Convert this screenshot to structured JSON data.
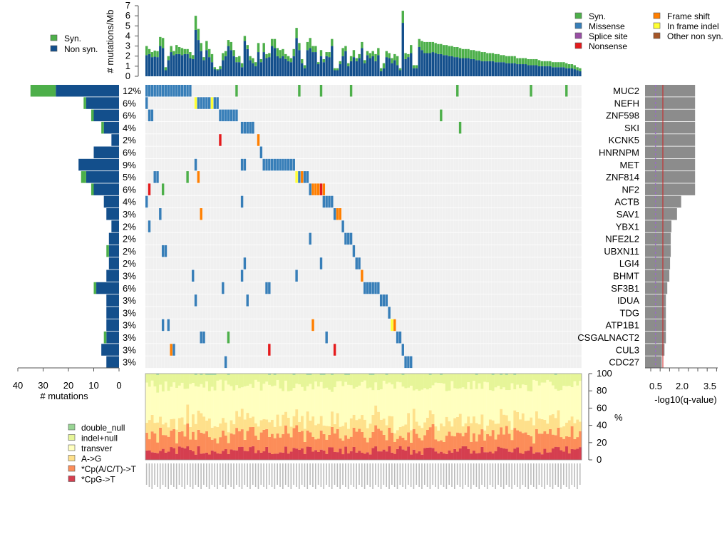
{
  "chart_data": {
    "type": "oncoplot",
    "title": "",
    "n_samples": 160,
    "colors": {
      "syn": "#4DAF4A",
      "nonsyn": "#134F8C",
      "missense": "#377EB8",
      "splice_site": "#984EA3",
      "nonsense": "#E41A1C",
      "frame_shift": "#FF7F00",
      "in_frame_indel": "#FFFF33",
      "other_non_syn": "#A65628",
      "background": "#F0F0F0",
      "qbar": "#8C8C8C",
      "spectrum": [
        "#D53E4F",
        "#FC8D59",
        "#FEE08B",
        "#FFFFBF",
        "#E6F598",
        "#99D594"
      ]
    },
    "top_legend": {
      "items": [
        {
          "label": "Syn.",
          "color": "#4DAF4A"
        },
        {
          "label": "Non syn.",
          "color": "#134F8C"
        }
      ]
    },
    "type_legend": {
      "items": [
        {
          "label": "Syn.",
          "color": "#4DAF4A"
        },
        {
          "label": "Missense",
          "color": "#377EB8"
        },
        {
          "label": "Splice site",
          "color": "#984EA3"
        },
        {
          "label": "Nonsense",
          "color": "#E41A1C"
        },
        {
          "label": "Frame shift",
          "color": "#FF7F00"
        },
        {
          "label": "In frame indel",
          "color": "#FFFF33"
        },
        {
          "label": "Other non syn.",
          "color": "#A65628"
        }
      ]
    },
    "burden": {
      "ylabel": "# mutations/Mb",
      "ylim": [
        0,
        7
      ],
      "ticks": [
        "0",
        "1",
        "2",
        "3",
        "4",
        "5",
        "6",
        "7"
      ],
      "nonsyn": [
        2.1,
        2.2,
        1.9,
        1.95,
        1.9,
        3.0,
        2.8,
        0.6,
        1.6,
        2.4,
        2.1,
        2.2,
        2.2,
        2.1,
        2.2,
        2.2,
        1.8,
        1.7,
        4.6,
        3.6,
        2.5,
        1.6,
        2.6,
        1.9,
        1.4,
        0.7,
        0.6,
        0.7,
        1.6,
        2.0,
        3.0,
        2.6,
        2.0,
        1.4,
        1.4,
        0.9,
        3.5,
        2.7,
        1.6,
        1.3,
        1.0,
        2.4,
        1.4,
        2.4,
        1.8,
        1.9,
        3.0,
        2.8,
        2.0,
        1.8,
        2.0,
        1.7,
        1.5,
        1.4,
        2.0,
        3.8,
        2.6,
        1.3,
        0.8,
        2.6,
        2.8,
        2.4,
        2.4,
        1.2,
        2.0,
        1.4,
        2.0,
        1.9,
        3.0,
        0.6,
        0.6,
        1.2,
        2.0,
        2.5,
        1.0,
        1.5,
        1.9,
        1.5,
        1.8,
        2.8,
        1.3,
        2.1,
        1.8,
        2.0,
        1.5,
        2.1,
        0.5,
        0.8,
        1.9,
        1.8,
        1.3,
        1.6,
        1.1,
        0.6,
        5.3,
        1.7,
        1.9,
        2.3,
        0.8,
        0.8,
        2.9,
        2.6,
        2.3,
        2.3,
        2.3,
        2.4,
        2.3,
        2.2,
        2.2,
        2.1,
        2.1,
        2.0,
        2.0,
        1.9,
        1.9,
        1.8,
        1.8,
        1.8,
        1.8,
        1.7,
        1.7,
        1.6,
        1.6,
        1.5,
        1.5,
        1.5,
        1.5,
        1.5,
        1.4,
        1.4,
        1.4,
        1.4,
        1.3,
        1.3,
        1.3,
        1.3,
        1.2,
        1.2,
        1.2,
        1.2,
        1.1,
        1.1,
        1.1,
        1.1,
        1.0,
        1.0,
        1.0,
        1.0,
        1.0,
        0.9,
        0.9,
        0.9,
        0.9,
        0.9,
        0.8,
        0.8,
        0.8,
        0.7,
        0.6,
        0.5,
        0.4,
        0.3,
        0.2,
        0.1
      ],
      "syn": [
        0.9,
        0.5,
        0.5,
        0.6,
        0.6,
        0.9,
        1.0,
        0.3,
        0.4,
        0.6,
        0.4,
        0.9,
        0.7,
        0.7,
        0.5,
        0.5,
        0.6,
        0.4,
        1.4,
        1.1,
        0.8,
        0.3,
        0.9,
        0.8,
        0.8,
        0.2,
        0.1,
        0.3,
        0.7,
        0.5,
        0.6,
        0.8,
        0.6,
        0.5,
        0.6,
        0.4,
        0.5,
        0.4,
        0.4,
        0.5,
        0.4,
        0.9,
        0.3,
        0.9,
        0.4,
        0.4,
        0.7,
        0.9,
        0.8,
        0.8,
        0.7,
        0.5,
        0.5,
        0.4,
        0.7,
        1.0,
        0.7,
        0.4,
        0.3,
        0.8,
        1.0,
        0.6,
        0.6,
        0.2,
        0.6,
        0.3,
        0.4,
        0.5,
        0.7,
        0.2,
        0.2,
        0.3,
        0.8,
        0.5,
        0.3,
        0.5,
        0.7,
        0.3,
        0.4,
        0.6,
        0.3,
        0.4,
        0.5,
        0.5,
        0.7,
        0.7,
        0.3,
        0.5,
        0.6,
        0.5,
        0.5,
        0.6,
        0.9,
        0.2,
        1.2,
        0.6,
        0.3,
        0.8,
        0.3,
        0.3,
        0.8,
        0.9,
        1.1,
        1.1,
        1.1,
        1.0,
        1.0,
        1.0,
        1.0,
        1.0,
        1.0,
        1.0,
        1.0,
        1.0,
        1.0,
        1.0,
        0.9,
        0.9,
        0.9,
        0.9,
        0.9,
        0.9,
        0.9,
        0.9,
        0.9,
        0.8,
        0.8,
        0.8,
        0.8,
        0.8,
        0.7,
        0.7,
        0.7,
        0.7,
        0.7,
        0.7,
        0.6,
        0.6,
        0.6,
        0.6,
        0.6,
        0.6,
        0.6,
        0.6,
        0.6,
        0.5,
        0.5,
        0.5,
        0.5,
        0.5,
        0.5,
        0.5,
        0.5,
        0.5,
        0.5,
        0.4,
        0.4,
        0.4,
        0.3,
        0.3,
        0.3,
        0.3
      ]
    },
    "genes": [
      {
        "name": "MUC2",
        "pct": "12%",
        "nonsyn": 25,
        "syn": 10,
        "neglog10q": 3.6
      },
      {
        "name": "NEFH",
        "pct": "6%",
        "nonsyn": 13,
        "syn": 1,
        "neglog10q": 3.6
      },
      {
        "name": "ZNF598",
        "pct": "6%",
        "nonsyn": 10,
        "syn": 1,
        "neglog10q": 3.6
      },
      {
        "name": "SKI",
        "pct": "4%",
        "nonsyn": 6,
        "syn": 1,
        "neglog10q": 3.6
      },
      {
        "name": "KCNK5",
        "pct": "2%",
        "nonsyn": 3,
        "syn": 0,
        "neglog10q": 3.6
      },
      {
        "name": "HNRNPM",
        "pct": "6%",
        "nonsyn": 10,
        "syn": 0,
        "neglog10q": 3.6
      },
      {
        "name": "MET",
        "pct": "9%",
        "nonsyn": 16,
        "syn": 0,
        "neglog10q": 3.6
      },
      {
        "name": "ZNF814",
        "pct": "5%",
        "nonsyn": 13,
        "syn": 2,
        "neglog10q": 3.6
      },
      {
        "name": "NF2",
        "pct": "6%",
        "nonsyn": 10,
        "syn": 1,
        "neglog10q": 3.6
      },
      {
        "name": "ACTB",
        "pct": "4%",
        "nonsyn": 6,
        "syn": 0,
        "neglog10q": 2.6
      },
      {
        "name": "SAV1",
        "pct": "3%",
        "nonsyn": 5,
        "syn": 0,
        "neglog10q": 2.3
      },
      {
        "name": "YBX1",
        "pct": "2%",
        "nonsyn": 3,
        "syn": 0,
        "neglog10q": 1.9
      },
      {
        "name": "NFE2L2",
        "pct": "2%",
        "nonsyn": 4,
        "syn": 0,
        "neglog10q": 1.85
      },
      {
        "name": "UBXN11",
        "pct": "2%",
        "nonsyn": 4,
        "syn": 1,
        "neglog10q": 1.85
      },
      {
        "name": "LGI4",
        "pct": "2%",
        "nonsyn": 4,
        "syn": 0,
        "neglog10q": 1.8
      },
      {
        "name": "BHMT",
        "pct": "3%",
        "nonsyn": 5,
        "syn": 0,
        "neglog10q": 1.75
      },
      {
        "name": "SF3B1",
        "pct": "6%",
        "nonsyn": 9,
        "syn": 1,
        "neglog10q": 1.6
      },
      {
        "name": "IDUA",
        "pct": "3%",
        "nonsyn": 5,
        "syn": 0,
        "neglog10q": 1.5
      },
      {
        "name": "TDG",
        "pct": "3%",
        "nonsyn": 5,
        "syn": 0,
        "neglog10q": 1.5
      },
      {
        "name": "ATP1B1",
        "pct": "3%",
        "nonsyn": 5,
        "syn": 0,
        "neglog10q": 1.5
      },
      {
        "name": "CSGALNACT2",
        "pct": "3%",
        "nonsyn": 5,
        "syn": 1,
        "neglog10q": 1.5
      },
      {
        "name": "CUL3",
        "pct": "3%",
        "nonsyn": 7,
        "syn": 0,
        "neglog10q": 1.4
      },
      {
        "name": "CDC27",
        "pct": "3%",
        "nonsyn": 5,
        "syn": 0,
        "neglog10q": 1.2
      }
    ],
    "matrix": [
      [
        [
          0,
          "M"
        ],
        [
          1,
          "M"
        ],
        [
          2,
          "M"
        ],
        [
          3,
          "M"
        ],
        [
          4,
          "M"
        ],
        [
          5,
          "M"
        ],
        [
          6,
          "M"
        ],
        [
          7,
          "M"
        ],
        [
          8,
          "M"
        ],
        [
          9,
          "M"
        ],
        [
          10,
          "M"
        ],
        [
          11,
          "M"
        ],
        [
          12,
          "M"
        ],
        [
          13,
          "M"
        ],
        [
          14,
          "M"
        ],
        [
          15,
          "M"
        ],
        [
          16,
          "M"
        ],
        [
          33,
          "S"
        ],
        [
          56,
          "S"
        ],
        [
          64,
          "S"
        ],
        [
          75,
          "S"
        ],
        [
          114,
          "S"
        ],
        [
          141,
          "S"
        ],
        [
          154,
          "S"
        ]
      ],
      [
        [
          0,
          "M"
        ],
        [
          18,
          "I"
        ],
        [
          19,
          "M"
        ],
        [
          20,
          "M"
        ],
        [
          21,
          "M"
        ],
        [
          22,
          "M"
        ],
        [
          23,
          "M"
        ],
        [
          24,
          "I"
        ],
        [
          25,
          "M"
        ],
        [
          26,
          "M"
        ]
      ],
      [
        [
          1,
          "M"
        ],
        [
          2,
          "M"
        ],
        [
          27,
          "M"
        ],
        [
          28,
          "M"
        ],
        [
          29,
          "M"
        ],
        [
          30,
          "M"
        ],
        [
          31,
          "M"
        ],
        [
          32,
          "M"
        ],
        [
          33,
          "M"
        ],
        [
          108,
          "S"
        ]
      ],
      [
        [
          35,
          "M"
        ],
        [
          36,
          "M"
        ],
        [
          37,
          "M"
        ],
        [
          38,
          "M"
        ],
        [
          39,
          "M"
        ],
        [
          39,
          "M"
        ],
        [
          115,
          "S"
        ]
      ],
      [
        [
          27,
          "N"
        ],
        [
          41,
          "F"
        ]
      ],
      [
        [
          42,
          "M"
        ]
      ],
      [
        [
          18,
          "M"
        ],
        [
          35,
          "M"
        ],
        [
          36,
          "M"
        ],
        [
          43,
          "M"
        ],
        [
          44,
          "M"
        ],
        [
          45,
          "M"
        ],
        [
          46,
          "M"
        ],
        [
          47,
          "M"
        ],
        [
          48,
          "M"
        ],
        [
          49,
          "M"
        ],
        [
          50,
          "M"
        ],
        [
          51,
          "M"
        ],
        [
          52,
          "M"
        ],
        [
          53,
          "M"
        ],
        [
          54,
          "M"
        ]
      ],
      [
        [
          3,
          "M"
        ],
        [
          4,
          "M"
        ],
        [
          15,
          "S"
        ],
        [
          19,
          "F"
        ],
        [
          55,
          "I"
        ],
        [
          56,
          "M"
        ],
        [
          57,
          "F"
        ],
        [
          58,
          "M"
        ],
        [
          59,
          "M"
        ]
      ],
      [
        [
          1,
          "N"
        ],
        [
          6,
          "S"
        ],
        [
          60,
          "M"
        ],
        [
          61,
          "F"
        ],
        [
          62,
          "F"
        ],
        [
          63,
          "F"
        ],
        [
          64,
          "N"
        ],
        [
          65,
          "F"
        ]
      ],
      [
        [
          0,
          "M"
        ],
        [
          35,
          "M"
        ],
        [
          65,
          "M"
        ],
        [
          66,
          "M"
        ],
        [
          67,
          "M"
        ],
        [
          68,
          "M"
        ]
      ],
      [
        [
          5,
          "M"
        ],
        [
          20,
          "F"
        ],
        [
          69,
          "M"
        ],
        [
          70,
          "F"
        ],
        [
          71,
          "F"
        ]
      ],
      [
        [
          1,
          "M"
        ],
        [
          72,
          "M"
        ]
      ],
      [
        [
          60,
          "M"
        ],
        [
          73,
          "M"
        ],
        [
          74,
          "M"
        ],
        [
          75,
          "M"
        ]
      ],
      [
        [
          6,
          "M"
        ],
        [
          7,
          "M"
        ],
        [
          76,
          "M"
        ]
      ],
      [
        [
          36,
          "M"
        ],
        [
          64,
          "M"
        ],
        [
          77,
          "M"
        ],
        [
          78,
          "M"
        ]
      ],
      [
        [
          17,
          "M"
        ],
        [
          35,
          "M"
        ],
        [
          55,
          "M"
        ],
        [
          79,
          "F"
        ]
      ],
      [
        [
          28,
          "M"
        ],
        [
          44,
          "M"
        ],
        [
          45,
          "M"
        ],
        [
          80,
          "M"
        ],
        [
          81,
          "M"
        ],
        [
          82,
          "M"
        ],
        [
          83,
          "M"
        ],
        [
          84,
          "M"
        ],
        [
          85,
          "M"
        ]
      ],
      [
        [
          18,
          "M"
        ],
        [
          37,
          "M"
        ],
        [
          86,
          "M"
        ],
        [
          87,
          "M"
        ],
        [
          88,
          "M"
        ]
      ],
      [
        [
          89,
          "M"
        ]
      ],
      [
        [
          6,
          "M"
        ],
        [
          8,
          "M"
        ],
        [
          61,
          "F"
        ],
        [
          90,
          "I"
        ],
        [
          91,
          "F"
        ]
      ],
      [
        [
          20,
          "M"
        ],
        [
          21,
          "M"
        ],
        [
          30,
          "S"
        ],
        [
          66,
          "M"
        ],
        [
          92,
          "M"
        ],
        [
          93,
          "M"
        ]
      ],
      [
        [
          9,
          "F"
        ],
        [
          10,
          "M"
        ],
        [
          45,
          "N"
        ],
        [
          69,
          "N"
        ],
        [
          94,
          "M"
        ]
      ],
      [
        [
          29,
          "M"
        ],
        [
          95,
          "M"
        ],
        [
          96,
          "M"
        ],
        [
          97,
          "M"
        ]
      ]
    ],
    "gene_axis": {
      "xlabel": "# mutations",
      "ticks": [
        "40",
        "30",
        "20",
        "10",
        "0"
      ],
      "xlim": [
        0,
        40
      ]
    },
    "q_axis": {
      "xlabel": "-log10(q-value)",
      "ticks": [
        "0.5",
        "2.0",
        "3.5"
      ],
      "xlim": [
        0,
        4
      ],
      "threshold_solid": 1.0,
      "threshold_dashed": 0.55
    },
    "spectrum": {
      "ylabel": "%",
      "ylim": [
        0,
        100
      ],
      "ticks": [
        "0",
        "20",
        "40",
        "60",
        "80",
        "100"
      ],
      "legend": [
        "double_null",
        "indel+null",
        "transver",
        "A->G",
        "*Cp(A/C/T)->T",
        "*CpG->T"
      ],
      "cpg_mean": 11,
      "cpa_mean": 18,
      "ag_mean": 17,
      "indel_mean": 14
    }
  }
}
